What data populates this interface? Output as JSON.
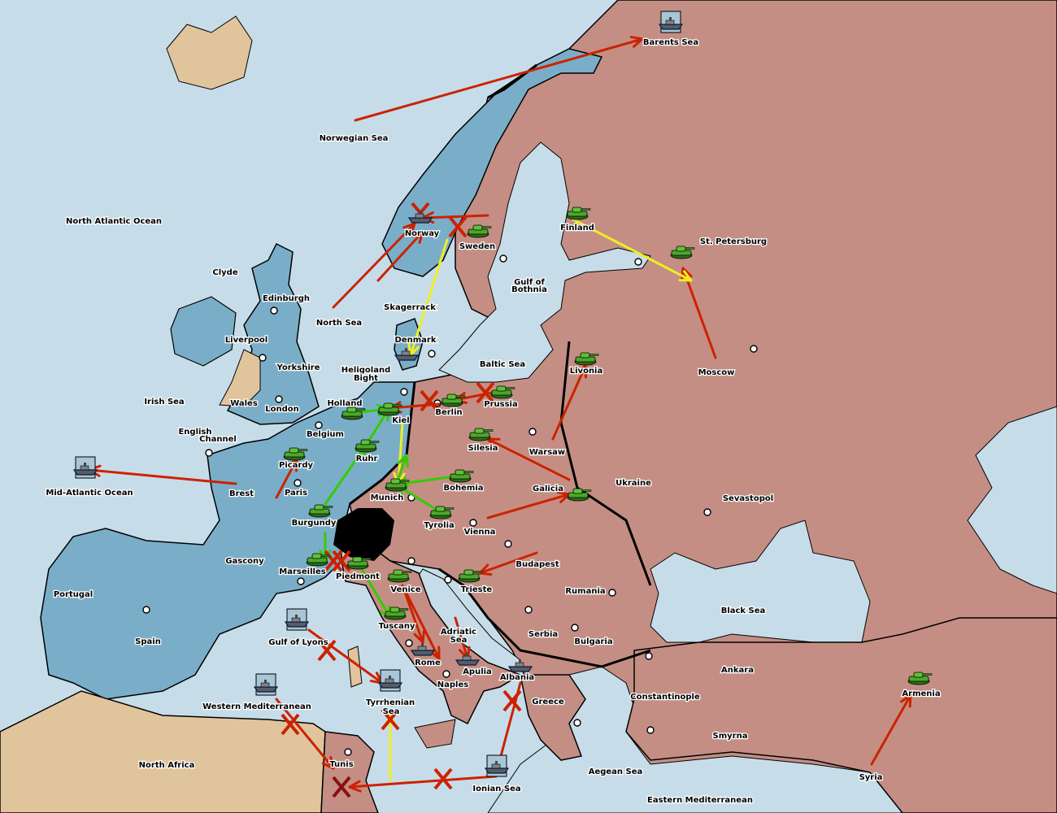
{
  "colors": {
    "sea": "#c6dde9",
    "blue_power": "#7aaec8",
    "pink_power": "#c48e84",
    "neutral_land": "#e0c49c",
    "impassable": "#000000",
    "move_order": "#cc2200",
    "support_green": "#33cc00",
    "support_yellow": "#eeee22"
  },
  "labels": [
    "Barents Sea",
    "Norwegian Sea",
    "North Atlantic Ocean",
    "Clyde",
    "Edinburgh",
    "North Sea",
    "Liverpool",
    "Yorkshire",
    "Irish Sea",
    "Wales",
    "London",
    "English",
    "Channel",
    "Mid-Atlantic Ocean",
    "Picardy",
    "Brest",
    "Paris",
    "Belgium",
    "Holland",
    "Heligoland",
    "Bight",
    "Kiel",
    "Berlin",
    "Prussia",
    "Ruhr",
    "Burgundy",
    "Munich",
    "Bohemia",
    "Silesia",
    "Warsaw",
    "Livonia",
    "Moscow",
    "Finland",
    "St. Petersburg",
    "Sweden",
    "Norway",
    "Skagerrack",
    "Denmark",
    "Gulf of",
    "Bothnia",
    "Baltic Sea",
    "Galicia",
    "Ukraine",
    "Sevastopol",
    "Tyrolia",
    "Vienna",
    "Budapest",
    "Gascony",
    "Marseilles",
    "Piedmont",
    "Venice",
    "Trieste",
    "Rumania",
    "Portugal",
    "Spain",
    "Gulf of Lyons",
    "Tuscany",
    "Adriatic",
    "Sea",
    "Serbia",
    "Bulgaria",
    "Black Sea",
    "Rome",
    "Apulia",
    "Albania",
    "Naples",
    "Ankara",
    "Constantinople",
    "Armenia",
    "Greece",
    "Western Mediterranean",
    "Tyrrhenian",
    "Sea",
    "Smyrna",
    "North Africa",
    "Tunis",
    "Aegean Sea",
    "Ionian Sea",
    "Syria",
    "Eastern Mediterranean"
  ],
  "units": [
    {
      "type": "fleet",
      "province": "Barents Sea"
    },
    {
      "type": "fleet",
      "province": "Norway"
    },
    {
      "type": "fleet",
      "province": "Denmark"
    },
    {
      "type": "fleet",
      "province": "Mid-Atlantic Ocean"
    },
    {
      "type": "fleet",
      "province": "Gulf of Lyons"
    },
    {
      "type": "fleet",
      "province": "Western Mediterranean"
    },
    {
      "type": "fleet",
      "province": "Tyrrhenian Sea"
    },
    {
      "type": "fleet",
      "province": "Rome"
    },
    {
      "type": "fleet",
      "province": "Apulia"
    },
    {
      "type": "fleet",
      "province": "Albania"
    },
    {
      "type": "fleet",
      "province": "Ionian Sea"
    },
    {
      "type": "army",
      "province": "Sweden"
    },
    {
      "type": "army",
      "province": "Finland"
    },
    {
      "type": "army",
      "province": "St. Petersburg"
    },
    {
      "type": "army",
      "province": "Livonia"
    },
    {
      "type": "army",
      "province": "Prussia"
    },
    {
      "type": "army",
      "province": "Berlin"
    },
    {
      "type": "army",
      "province": "Kiel"
    },
    {
      "type": "army",
      "province": "Holland"
    },
    {
      "type": "army",
      "province": "Ruhr"
    },
    {
      "type": "army",
      "province": "Picardy"
    },
    {
      "type": "army",
      "province": "Burgundy"
    },
    {
      "type": "army",
      "province": "Silesia"
    },
    {
      "type": "army",
      "province": "Bohemia"
    },
    {
      "type": "army",
      "province": "Munich"
    },
    {
      "type": "army",
      "province": "Tyrolia"
    },
    {
      "type": "army",
      "province": "Galicia"
    },
    {
      "type": "army",
      "province": "Marseilles"
    },
    {
      "type": "army",
      "province": "Piedmont"
    },
    {
      "type": "army",
      "province": "Venice"
    },
    {
      "type": "army",
      "province": "Tuscany"
    },
    {
      "type": "army",
      "province": "Trieste"
    },
    {
      "type": "army",
      "province": "Armenia"
    }
  ]
}
